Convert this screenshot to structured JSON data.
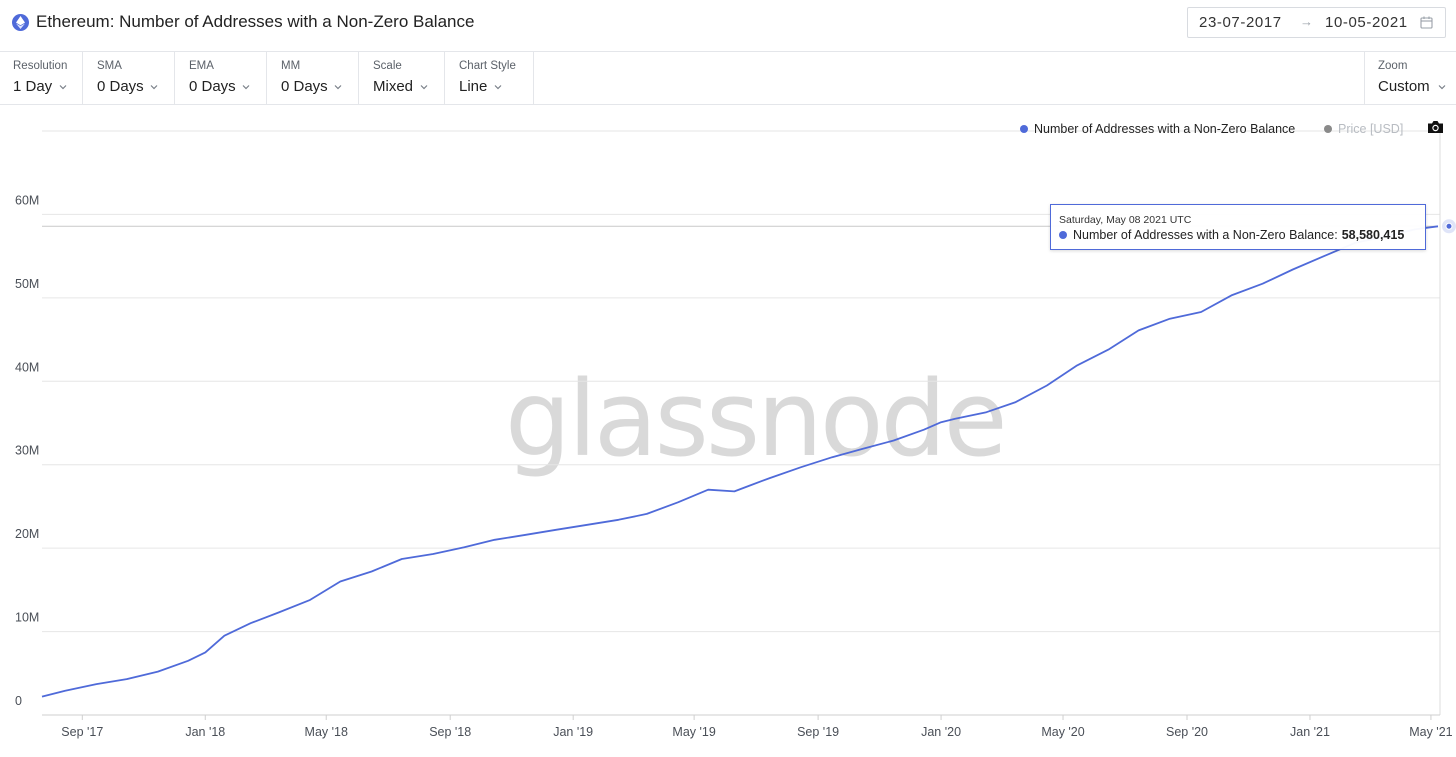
{
  "header": {
    "icon": "ethereum-icon",
    "title": "Ethereum: Number of Addresses with a Non-Zero Balance",
    "date_from": "23-07-2017",
    "date_arrow": "→",
    "date_to": "10-05-2021"
  },
  "toolbar": {
    "controls": [
      {
        "label": "Resolution",
        "value": "1 Day"
      },
      {
        "label": "SMA",
        "value": "0 Days"
      },
      {
        "label": "EMA",
        "value": "0 Days"
      },
      {
        "label": "MM",
        "value": "0 Days"
      },
      {
        "label": "Scale",
        "value": "Mixed"
      },
      {
        "label": "Chart Style",
        "value": "Line"
      }
    ],
    "zoom": {
      "label": "Zoom",
      "value": "Custom"
    }
  },
  "legend": [
    {
      "name": "Number of Addresses with a Non-Zero Balance",
      "color": "#4f6ad9",
      "active": true
    },
    {
      "name": "Price [USD]",
      "color": "#777777",
      "active": false
    }
  ],
  "tooltip": {
    "date": "Saturday, May 08 2021 UTC",
    "series": "Number of Addresses with a Non-Zero Balance:",
    "value": "58,580,415"
  },
  "watermark": "glassnode",
  "colors": {
    "line": "#4f6ad9",
    "grid": "#e6e6e6",
    "axis_text": "#4a4f57"
  },
  "chart_data": {
    "type": "line",
    "title": "",
    "xlabel": "",
    "ylabel": "",
    "x_range": [
      "2017-07-23",
      "2021-05-10"
    ],
    "ylim": [
      0,
      70000000
    ],
    "y_ticks": [
      {
        "value": 0,
        "label": "0"
      },
      {
        "value": 10000000,
        "label": "10M"
      },
      {
        "value": 20000000,
        "label": "20M"
      },
      {
        "value": 30000000,
        "label": "30M"
      },
      {
        "value": 40000000,
        "label": "40M"
      },
      {
        "value": 50000000,
        "label": "50M"
      },
      {
        "value": 60000000,
        "label": "60M"
      }
    ],
    "x_ticks": [
      {
        "date": "2017-09-01",
        "label": "Sep '17"
      },
      {
        "date": "2018-01-01",
        "label": "Jan '18"
      },
      {
        "date": "2018-05-01",
        "label": "May '18"
      },
      {
        "date": "2018-09-01",
        "label": "Sep '18"
      },
      {
        "date": "2019-01-01",
        "label": "Jan '19"
      },
      {
        "date": "2019-05-01",
        "label": "May '19"
      },
      {
        "date": "2019-09-01",
        "label": "Sep '19"
      },
      {
        "date": "2020-01-01",
        "label": "Jan '20"
      },
      {
        "date": "2020-05-01",
        "label": "May '20"
      },
      {
        "date": "2020-09-01",
        "label": "Sep '20"
      },
      {
        "date": "2021-01-01",
        "label": "Jan '21"
      },
      {
        "date": "2021-05-01",
        "label": "May '21"
      }
    ],
    "series": [
      {
        "name": "Number of Addresses with a Non-Zero Balance",
        "x": [
          "2017-07-23",
          "2017-08-15",
          "2017-09-15",
          "2017-10-15",
          "2017-11-15",
          "2017-12-15",
          "2018-01-01",
          "2018-01-20",
          "2018-02-15",
          "2018-03-15",
          "2018-04-15",
          "2018-05-15",
          "2018-06-15",
          "2018-07-15",
          "2018-08-15",
          "2018-09-15",
          "2018-10-15",
          "2018-11-15",
          "2018-12-15",
          "2019-01-15",
          "2019-02-15",
          "2019-03-15",
          "2019-04-15",
          "2019-05-15",
          "2019-06-10",
          "2019-06-25",
          "2019-07-15",
          "2019-08-15",
          "2019-09-15",
          "2019-10-15",
          "2019-11-15",
          "2019-12-15",
          "2020-01-01",
          "2020-01-15",
          "2020-02-15",
          "2020-03-15",
          "2020-04-15",
          "2020-05-15",
          "2020-06-15",
          "2020-07-15",
          "2020-08-15",
          "2020-09-15",
          "2020-10-15",
          "2020-11-15",
          "2020-12-15",
          "2021-01-15",
          "2021-02-15",
          "2021-03-15",
          "2021-04-15",
          "2021-05-08"
        ],
        "values": [
          2200000,
          2900000,
          3700000,
          4300000,
          5200000,
          6500000,
          7500000,
          9500000,
          11000000,
          12300000,
          13800000,
          16000000,
          17200000,
          18700000,
          19300000,
          20100000,
          21000000,
          21600000,
          22200000,
          22800000,
          23400000,
          24100000,
          25500000,
          27000000,
          26800000,
          27500000,
          28400000,
          29700000,
          30900000,
          31900000,
          32900000,
          34200000,
          35100000,
          35500000,
          36300000,
          37500000,
          39500000,
          41900000,
          43800000,
          46100000,
          47500000,
          48300000,
          50300000,
          51700000,
          53400000,
          55000000,
          56600000,
          57300000,
          58200000,
          58580415
        ]
      }
    ]
  }
}
